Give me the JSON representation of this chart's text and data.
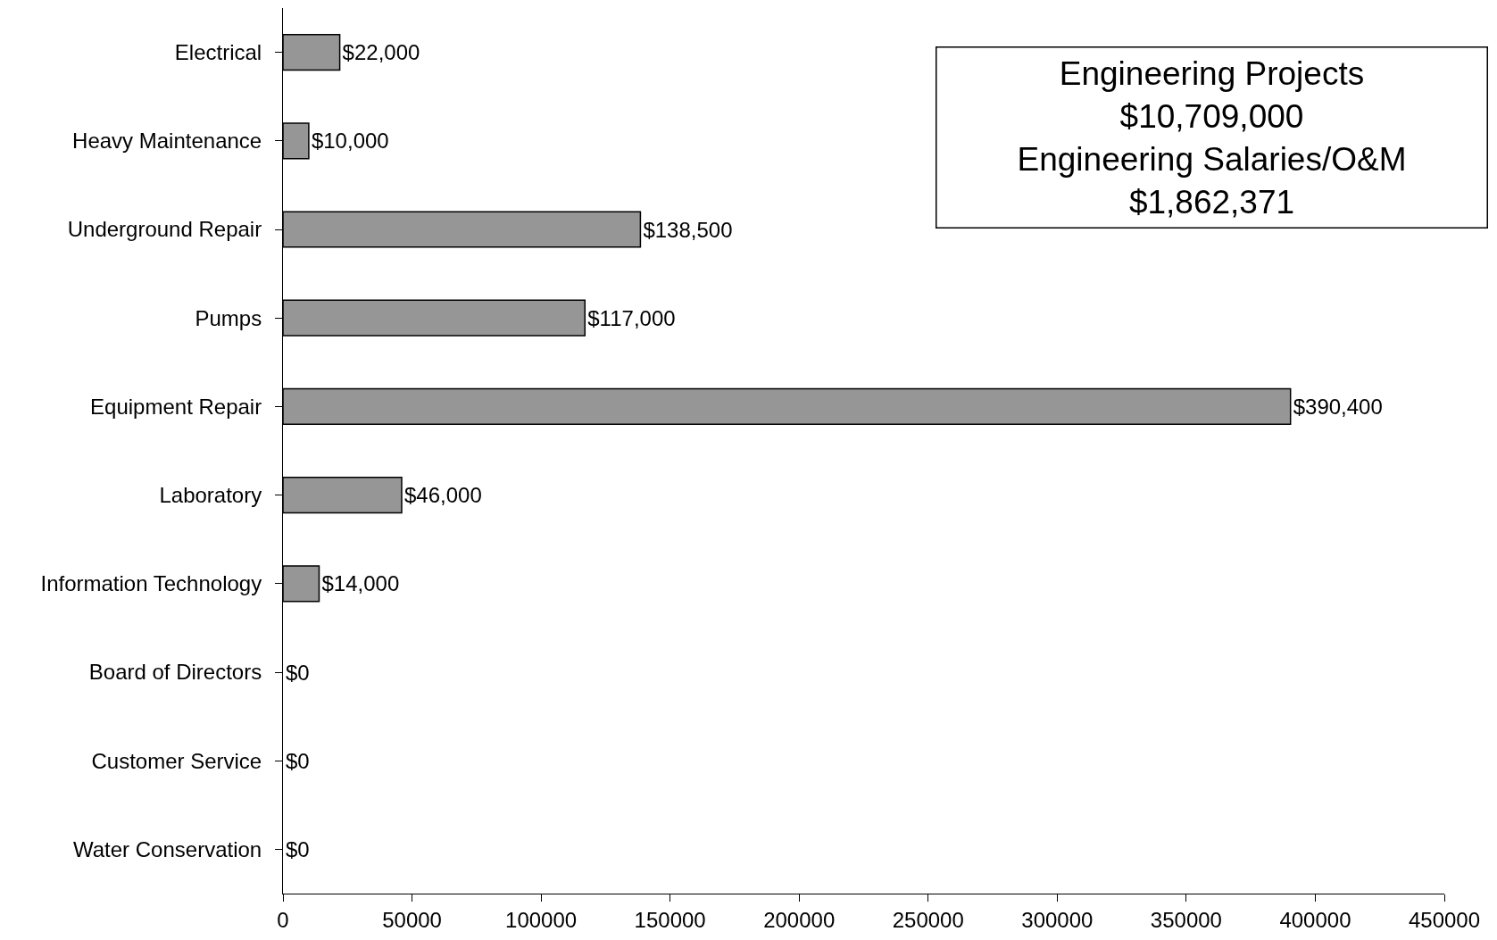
{
  "chart_data": {
    "type": "bar",
    "orientation": "horizontal",
    "categories": [
      "Electrical",
      "Heavy Maintenance",
      "Underground Repair",
      "Pumps",
      "Equipment Repair",
      "Laboratory",
      "Information Technology",
      "Board of Directors",
      "Customer Service",
      "Water Conservation"
    ],
    "values": [
      22000,
      10000,
      138500,
      117000,
      390400,
      46000,
      14000,
      0,
      0,
      0
    ],
    "value_labels": [
      "$22,000",
      "$10,000",
      "$138,500",
      "$117,000",
      "$390,400",
      "$46,000",
      "$14,000",
      "$0",
      "$0",
      "$0"
    ],
    "color": "#969696",
    "xlim": [
      0,
      450000
    ],
    "xticks": [
      0,
      50000,
      100000,
      150000,
      200000,
      250000,
      300000,
      350000,
      400000,
      450000
    ],
    "grid": false,
    "legend": false,
    "annotations": [
      "Engineering Projects",
      "$10,709,000",
      "Engineering Salaries/O&M",
      "$1,862,371"
    ]
  }
}
